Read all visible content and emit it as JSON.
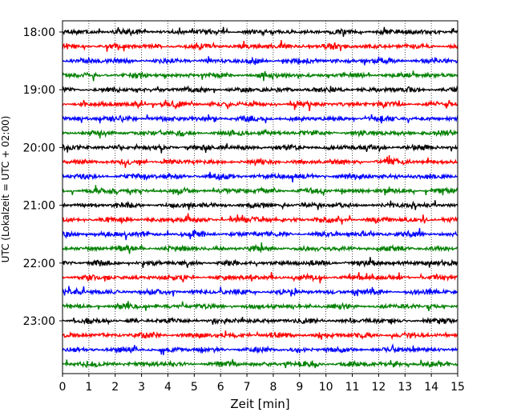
{
  "chart_data": {
    "type": "line",
    "title": "",
    "xlabel": "Zeit  [min]",
    "ylabel": "UTC (Lokalzeit = UTC + 02:00)",
    "xlim": [
      0,
      15
    ],
    "x_ticks": [
      "0",
      "1",
      "2",
      "3",
      "4",
      "5",
      "6",
      "7",
      "8",
      "9",
      "10",
      "11",
      "12",
      "13",
      "14",
      "15"
    ],
    "y_ticks": [
      "18:00",
      "19:00",
      "20:00",
      "21:00",
      "22:00",
      "23:00"
    ],
    "grid": "vertical dotted lines at each minute",
    "trace_minutes": 15,
    "first_trace_start": "18:00",
    "colors": [
      "#000000",
      "#ff0000",
      "#0000ff",
      "#008000"
    ],
    "series": [
      {
        "start": "18:00",
        "color": "#000000"
      },
      {
        "start": "18:15",
        "color": "#ff0000"
      },
      {
        "start": "18:30",
        "color": "#0000ff"
      },
      {
        "start": "18:45",
        "color": "#008000"
      },
      {
        "start": "19:00",
        "color": "#000000"
      },
      {
        "start": "19:15",
        "color": "#ff0000"
      },
      {
        "start": "19:30",
        "color": "#0000ff"
      },
      {
        "start": "19:45",
        "color": "#008000"
      },
      {
        "start": "20:00",
        "color": "#000000"
      },
      {
        "start": "20:15",
        "color": "#ff0000"
      },
      {
        "start": "20:30",
        "color": "#0000ff"
      },
      {
        "start": "20:45",
        "color": "#008000"
      },
      {
        "start": "21:00",
        "color": "#000000"
      },
      {
        "start": "21:15",
        "color": "#ff0000"
      },
      {
        "start": "21:30",
        "color": "#0000ff"
      },
      {
        "start": "21:45",
        "color": "#008000"
      },
      {
        "start": "22:00",
        "color": "#000000"
      },
      {
        "start": "22:15",
        "color": "#ff0000"
      },
      {
        "start": "22:30",
        "color": "#0000ff"
      },
      {
        "start": "22:45",
        "color": "#008000"
      },
      {
        "start": "23:00",
        "color": "#000000"
      },
      {
        "start": "23:15",
        "color": "#ff0000"
      },
      {
        "start": "23:30",
        "color": "#0000ff"
      },
      {
        "start": "23:45",
        "color": "#008000"
      }
    ]
  }
}
